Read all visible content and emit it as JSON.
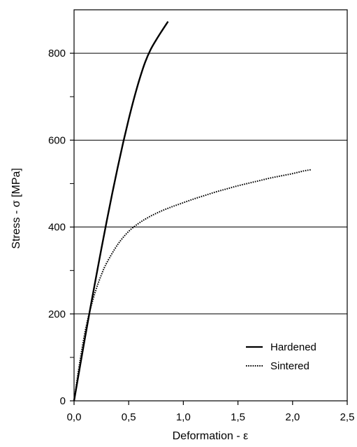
{
  "chart_data": {
    "type": "line",
    "title": "",
    "xlabel": "Deformation - ε",
    "ylabel": "Stress - σ [MPa]",
    "xlim": [
      0,
      2.5
    ],
    "ylim": [
      0,
      900
    ],
    "xticks": [
      0,
      0.5,
      1.0,
      1.5,
      2.0,
      2.5
    ],
    "xtick_labels": [
      "0,0",
      "0,5",
      "1,0",
      "1,5",
      "2,0",
      "2,5"
    ],
    "yticks": [
      0,
      200,
      400,
      600,
      800
    ],
    "ytick_labels": [
      "0",
      "200",
      "400",
      "600",
      "800"
    ],
    "y_minor_ticks": [
      100,
      300,
      500,
      700
    ],
    "grid": "horizontal at major y ticks",
    "legend_position": "bottom-right",
    "series": [
      {
        "name": "Hardened",
        "style": "solid",
        "color": "#000000",
        "x": [
          0,
          0.05,
          0.1,
          0.15,
          0.2,
          0.25,
          0.3,
          0.35,
          0.4,
          0.45,
          0.5,
          0.55,
          0.6,
          0.65,
          0.7,
          0.75,
          0.8,
          0.86
        ],
        "y": [
          0,
          73,
          145,
          215,
          283,
          350,
          415,
          478,
          538,
          595,
          648,
          697,
          741,
          779,
          808,
          830,
          850,
          873
        ]
      },
      {
        "name": "Sintered",
        "style": "dotted",
        "color": "#000000",
        "x": [
          0,
          0.05,
          0.1,
          0.15,
          0.2,
          0.25,
          0.3,
          0.4,
          0.5,
          0.6,
          0.7,
          0.8,
          0.9,
          1.0,
          1.1,
          1.2,
          1.3,
          1.4,
          1.5,
          1.6,
          1.7,
          1.8,
          1.9,
          2.0,
          2.1,
          2.17
        ],
        "y": [
          0,
          85,
          158,
          212,
          255,
          290,
          318,
          360,
          390,
          410,
          425,
          437,
          447,
          456,
          465,
          473,
          481,
          488,
          495,
          501,
          507,
          513,
          518,
          523,
          529,
          532
        ]
      }
    ]
  }
}
